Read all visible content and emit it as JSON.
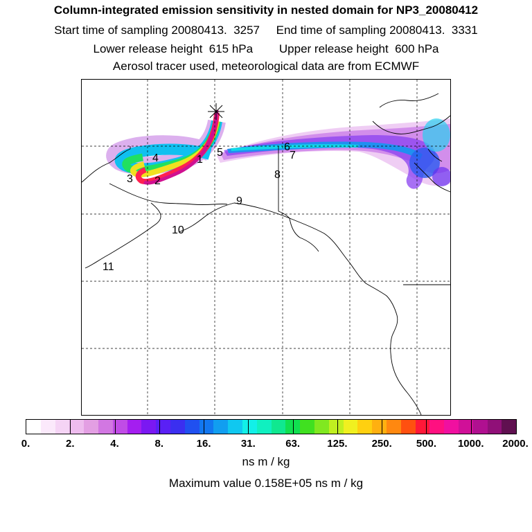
{
  "header": {
    "title": "Column-integrated emission sensitivity in nested domain for NP3_20080412",
    "line2": "Start time of sampling 20080413.  3257     End time of sampling 20080413.  3331",
    "line3": "Lower release height  615 hPa        Upper release height  600 hPa",
    "line4": "Aerosol tracer used, meteorological data are from ECMWF"
  },
  "map": {
    "labels": [
      {
        "text": "1",
        "id": "label-1"
      },
      {
        "text": "2",
        "id": "label-2"
      },
      {
        "text": "3",
        "id": "label-3"
      },
      {
        "text": "4",
        "id": "label-4"
      },
      {
        "text": "5",
        "id": "label-5"
      },
      {
        "text": "6",
        "id": "label-6"
      },
      {
        "text": "7",
        "id": "label-7"
      },
      {
        "text": "8",
        "id": "label-8"
      },
      {
        "text": "9",
        "id": "label-9"
      },
      {
        "text": "10",
        "id": "label-10"
      },
      {
        "text": "11",
        "id": "label-11"
      }
    ],
    "release_marker": "asterisk-icon"
  },
  "colorbar": {
    "colors": [
      "#ffffff",
      "#fbe9fb",
      "#f5d4f5",
      "#eebcee",
      "#e39fe3",
      "#d277e2",
      "#c04ce6",
      "#a41ef0",
      "#7b18f2",
      "#5a20f5",
      "#3b2ff0",
      "#2050f0",
      "#1277f0",
      "#119ef0",
      "#10c8f0",
      "#12f0e8",
      "#10f0c0",
      "#10e890",
      "#10e050",
      "#40e020",
      "#80e820",
      "#c0f020",
      "#f0f020",
      "#ffd010",
      "#ffb010",
      "#ff8810",
      "#ff5010",
      "#ff1838",
      "#ff1080",
      "#f010a0",
      "#d01098",
      "#b01090",
      "#901078",
      "#601050"
    ],
    "ticks": [
      "0.",
      "2.",
      "4.",
      "8.",
      "16.",
      "31.",
      "63.",
      "125.",
      "250.",
      "500.",
      "1000.",
      "2000."
    ]
  },
  "units": "ns m / kg",
  "max_value": "Maximum value  0.158E+05 ns m / kg"
}
